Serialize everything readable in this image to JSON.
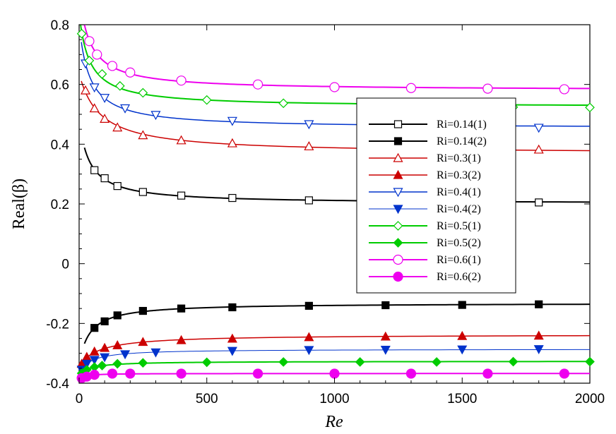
{
  "chart_data": {
    "type": "line",
    "title": "",
    "xlabel": "Re",
    "ylabel": "Real(β)",
    "xlim": [
      0,
      2000
    ],
    "ylim": [
      -0.4,
      0.8
    ],
    "grid": false,
    "legend_position": "right",
    "x_ticks": [
      0,
      500,
      1000,
      1500,
      2000
    ],
    "x_tick_labels": [
      "0",
      "500",
      "1000",
      "1500",
      "2000"
    ],
    "y_ticks": [
      -0.4,
      -0.2,
      0,
      0.2,
      0.4,
      0.6,
      0.8
    ],
    "y_tick_labels": [
      "-0.4",
      "-0.2",
      "0",
      "0.2",
      "0.4",
      "0.6",
      "0.8"
    ],
    "series": [
      {
        "name": "Ri=0.14(1)",
        "color": "#000000",
        "marker": "square-open",
        "line_width": 2,
        "x": [
          60,
          100,
          150,
          250,
          400,
          600,
          900,
          1800
        ],
        "y": [
          0.313,
          0.286,
          0.26,
          0.24,
          0.228,
          0.22,
          0.212,
          0.205
        ]
      },
      {
        "name": "Ri=0.14(2)",
        "color": "#000000",
        "marker": "square-filled",
        "line_width": 2,
        "x": [
          60,
          100,
          150,
          250,
          400,
          600,
          900,
          1200,
          1500,
          1800
        ],
        "y": [
          -0.215,
          -0.193,
          -0.173,
          -0.158,
          -0.15,
          -0.146,
          -0.141,
          -0.139,
          -0.138,
          -0.136
        ]
      },
      {
        "name": "Ri=0.3(1)",
        "color": "#cc0000",
        "marker": "triangle-up-open",
        "line_width": 1.5,
        "x": [
          25,
          60,
          100,
          150,
          250,
          400,
          600,
          900,
          1800
        ],
        "y": [
          0.58,
          0.52,
          0.485,
          0.456,
          0.43,
          0.413,
          0.403,
          0.393,
          0.382
        ]
      },
      {
        "name": "Ri=0.3(2)",
        "color": "#cc0000",
        "marker": "triangle-up-filled",
        "line_width": 1.5,
        "x": [
          10,
          30,
          60,
          100,
          150,
          250,
          400,
          600,
          900,
          1200,
          1500,
          1800
        ],
        "y": [
          -0.335,
          -0.312,
          -0.294,
          -0.282,
          -0.273,
          -0.262,
          -0.256,
          -0.251,
          -0.246,
          -0.244,
          -0.242,
          -0.241
        ]
      },
      {
        "name": "Ri=0.4(1)",
        "color": "#0033cc",
        "marker": "triangle-down-open",
        "line_width": 1.5,
        "x": [
          25,
          60,
          100,
          180,
          300,
          600,
          900,
          1800
        ],
        "y": [
          0.67,
          0.59,
          0.555,
          0.52,
          0.498,
          0.478,
          0.467,
          0.455
        ]
      },
      {
        "name": "Ri=0.4(2)",
        "color": "#0033cc",
        "marker": "triangle-down-filled",
        "line_width": 1,
        "x": [
          10,
          30,
          60,
          100,
          180,
          300,
          600,
          900,
          1200,
          1500,
          1800
        ],
        "y": [
          -0.355,
          -0.335,
          -0.322,
          -0.313,
          -0.303,
          -0.297,
          -0.292,
          -0.289,
          -0.288,
          -0.287,
          -0.286
        ]
      },
      {
        "name": "Ri=0.5(1)",
        "color": "#00cc00",
        "marker": "diamond-open",
        "line_width": 2,
        "x": [
          10,
          40,
          90,
          160,
          250,
          500,
          800,
          1700,
          2000
        ],
        "y": [
          0.77,
          0.68,
          0.635,
          0.595,
          0.572,
          0.548,
          0.537,
          0.524,
          0.523
        ]
      },
      {
        "name": "Ri=0.5(2)",
        "color": "#00cc00",
        "marker": "diamond-filled",
        "line_width": 2,
        "x": [
          10,
          30,
          60,
          90,
          150,
          250,
          500,
          800,
          1100,
          1400,
          1700,
          2000
        ],
        "y": [
          -0.367,
          -0.355,
          -0.346,
          -0.341,
          -0.335,
          -0.332,
          -0.33,
          -0.329,
          -0.329,
          -0.329,
          -0.328,
          -0.328
        ]
      },
      {
        "name": "Ri=0.6(1)",
        "color": "#ee00ee",
        "marker": "circle-open",
        "line_width": 2,
        "x": [
          40,
          70,
          130,
          200,
          400,
          700,
          1000,
          1300,
          1600,
          1900
        ],
        "y": [
          0.745,
          0.7,
          0.662,
          0.64,
          0.613,
          0.6,
          0.591,
          0.588,
          0.586,
          0.584
        ]
      },
      {
        "name": "Ri=0.6(2)",
        "color": "#ee00ee",
        "marker": "circle-filled",
        "line_width": 2,
        "x": [
          10,
          30,
          60,
          130,
          200,
          400,
          700,
          1000,
          1300,
          1600,
          1900
        ],
        "y": [
          -0.383,
          -0.378,
          -0.372,
          -0.368,
          -0.368,
          -0.368,
          -0.368,
          -0.368,
          -0.368,
          -0.368,
          -0.368
        ]
      }
    ]
  }
}
